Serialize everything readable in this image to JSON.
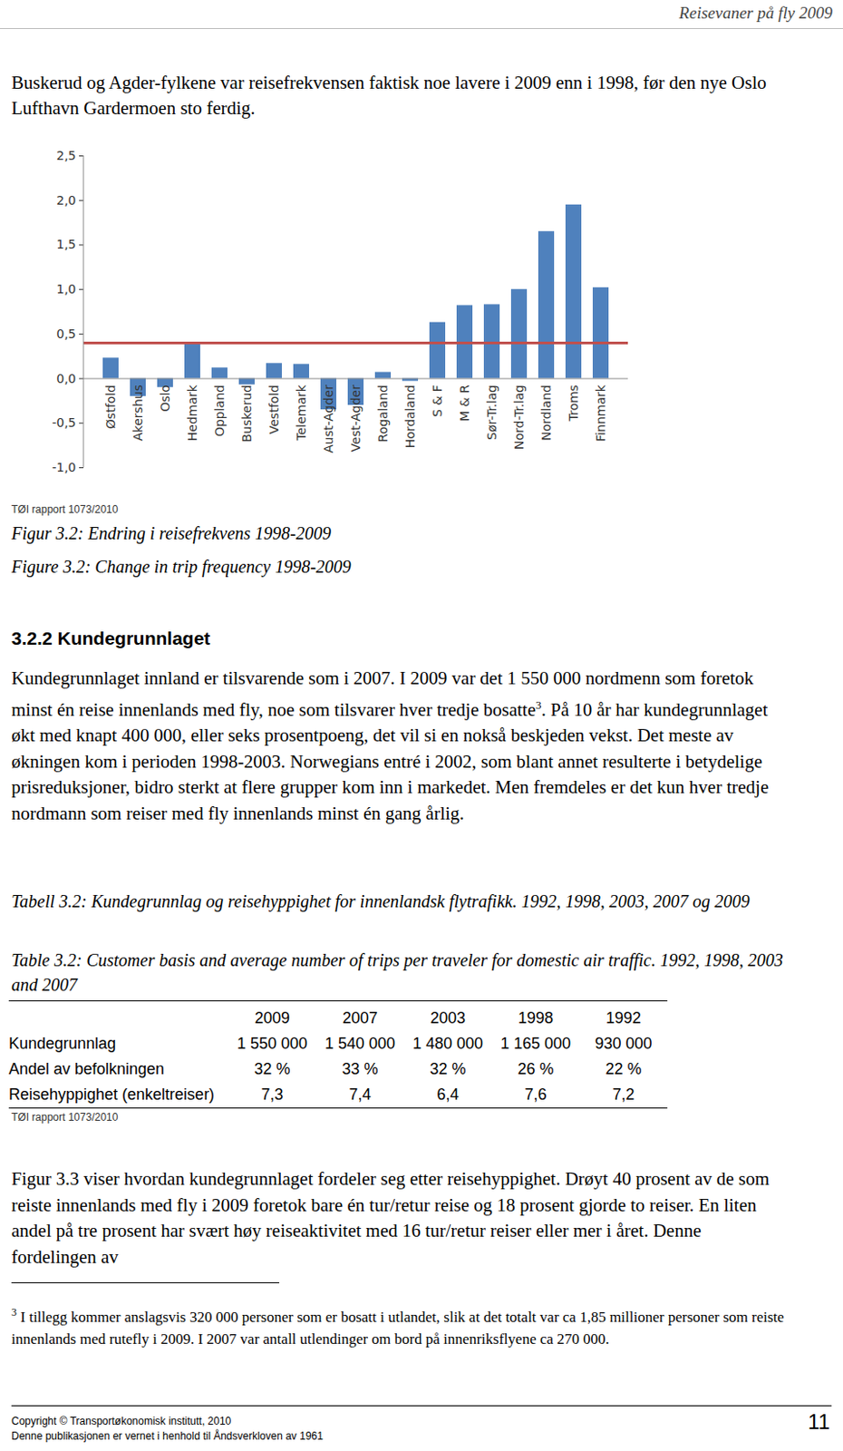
{
  "header": "Reisevaner på fly 2009",
  "intro": "Buskerud og Agder-fylkene var reisefrekvensen faktisk noe lavere i 2009 enn i 1998, før den nye Oslo Lufthavn Gardermoen sto ferdig.",
  "chart_data": {
    "type": "bar",
    "categories": [
      "Østfold",
      "Akershus",
      "Oslo",
      "Hedmark",
      "Oppland",
      "Buskerud",
      "Vestfold",
      "Telemark",
      "Aust-Agder",
      "Vest-Agder",
      "Rogaland",
      "Hordaland",
      "S & F",
      "M & R",
      "Sør-Tr.lag",
      "Nord-Tr.lag",
      "Nordland",
      "Troms",
      "Finnmark"
    ],
    "values": [
      0.23,
      -0.2,
      -0.1,
      0.38,
      0.12,
      -0.07,
      0.17,
      0.16,
      -0.35,
      -0.3,
      0.07,
      -0.03,
      0.63,
      0.82,
      0.83,
      1.0,
      1.65,
      1.95,
      1.02
    ],
    "color": "#4f81bd",
    "ylim": [
      -1,
      2.5
    ],
    "yticks": [
      {
        "value": -1,
        "label": "-1,0"
      },
      {
        "value": -0.5,
        "label": "-0,5"
      },
      {
        "value": 0,
        "label": "0,0"
      },
      {
        "value": 0.5,
        "label": "0,5"
      },
      {
        "value": 1,
        "label": "1,0"
      },
      {
        "value": 1.5,
        "label": "1,5"
      },
      {
        "value": 2,
        "label": "2,0"
      },
      {
        "value": 2.5,
        "label": "2,5"
      }
    ],
    "reference_line": {
      "value": 0.4,
      "color": "#c0504d"
    }
  },
  "figure": {
    "source": "TØI rapport 1073/2010",
    "caption_no": "Figur 3.2: Endring i reisefrekvens 1998-2009",
    "caption_en": "Figure 3.2: Change in trip frequency 1998-2009"
  },
  "section": {
    "heading": "3.2.2 Kundegrunnlaget",
    "paragraph": {
      "before_note": "Kundegrunnlaget innland er tilsvarende som i 2007. I 2009 var det 1 550 000 nordmenn som foretok minst én reise innenlands med fly, noe som tilsvarer hver tredje bosatte",
      "note_ref": "3",
      "after_note": ". På 10 år har kundegrunnlaget økt med knapt 400 000, eller seks prosentpoeng, det vil si en nokså beskjeden vekst. Det meste av økningen kom i perioden 1998-2003. Norwegians entré i 2002, som blant annet resulterte i betydelige prisreduksjoner, bidro sterkt at flere grupper kom inn i markedet. Men fremdeles er det kun hver tredje nordmann som reiser med fly innenlands minst én gang årlig."
    }
  },
  "table": {
    "caption_no": "Tabell 3.2: Kundegrunnlag og reisehyppighet for innenlandsk flytrafikk. 1992, 1998, 2003, 2007 og 2009",
    "caption_en": "Table 3.2: Customer basis and average number of trips per traveler for domestic air traffic. 1992, 1998, 2003 and 2007",
    "columns": [
      "2009",
      "2007",
      "2003",
      "1998",
      "1992"
    ],
    "rows": [
      {
        "label": "Kundegrunnlag",
        "cells": [
          "1 550 000",
          "1 540 000",
          "1 480 000",
          "1 165 000",
          "930 000"
        ]
      },
      {
        "label": "Andel av befolkningen",
        "cells": [
          "32 %",
          "33 %",
          "32 %",
          "26 %",
          "22 %"
        ]
      },
      {
        "label": "Reisehyppighet (enkeltreiser)",
        "cells": [
          "7,3",
          "7,4",
          "6,4",
          "7,6",
          "7,2"
        ]
      }
    ],
    "source": "TØI rapport 1073/2010"
  },
  "paragraph2": "Figur 3.3 viser hvordan kundegrunnlaget fordeler seg etter reisehyppighet. Drøyt 40 prosent av de som reiste innenlands med fly i 2009 foretok bare én tur/retur reise og 18 prosent gjorde to reiser. En liten andel på tre prosent har svært høy reiseaktivitet med 16 tur/retur reiser eller mer i året. Denne fordelingen av",
  "footnote": {
    "ref": "3",
    "text": " I tillegg kommer anslagsvis 320 000 personer som er bosatt i utlandet, slik at det totalt var ca 1,85 millioner personer som reiste innenlands med rutefly i 2009. I 2007 var antall utlendinger om bord på innenriksflyene ca 270 000."
  },
  "footer": {
    "copyright": "Copyright © Transportøkonomisk institutt, 2010",
    "notice": "Denne publikasjonen er vernet i henhold til Åndsverkloven av 1961",
    "page": "11"
  }
}
